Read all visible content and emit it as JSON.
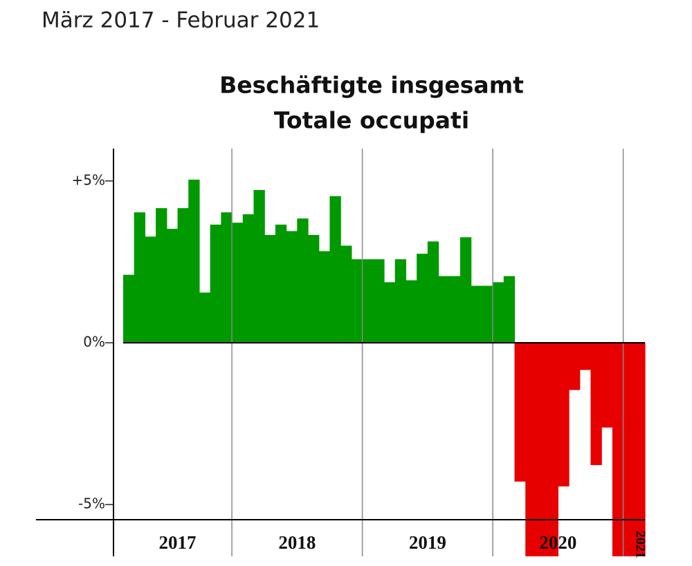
{
  "header": "März 2017 - Februar 2021",
  "chart_data": {
    "type": "bar",
    "title": [
      "Beschäftigte insgesamt",
      "Totale occupati"
    ],
    "year_labels": [
      "2017",
      "2018",
      "2019",
      "2020",
      "2021"
    ],
    "year_months": [
      10,
      12,
      12,
      12,
      2
    ],
    "values": [
      2.1,
      4.03,
      3.28,
      4.16,
      3.52,
      4.16,
      5.04,
      1.55,
      3.65,
      4.03,
      3.71,
      3.97,
      4.72,
      3.33,
      3.65,
      3.45,
      3.84,
      3.33,
      2.83,
      4.53,
      3.0,
      2.58,
      2.58,
      2.58,
      1.87,
      2.58,
      1.93,
      2.75,
      3.13,
      2.06,
      2.06,
      3.26,
      1.76,
      1.76,
      1.87,
      2.06,
      -4.29,
      -6.6,
      -6.6,
      -6.6,
      -4.44,
      -1.46,
      -0.84,
      -3.78,
      -2.62,
      -6.65,
      -6.65,
      -6.65
    ],
    "positive_color": "#009900",
    "negative_color": "#e60000",
    "ylim": [
      -6.6,
      6
    ],
    "yticks": [
      {
        "value": 5,
        "label": "+5%"
      },
      {
        "value": 0,
        "label": "0%"
      },
      {
        "value": -5,
        "label": "-5%"
      }
    ],
    "grid": true
  }
}
